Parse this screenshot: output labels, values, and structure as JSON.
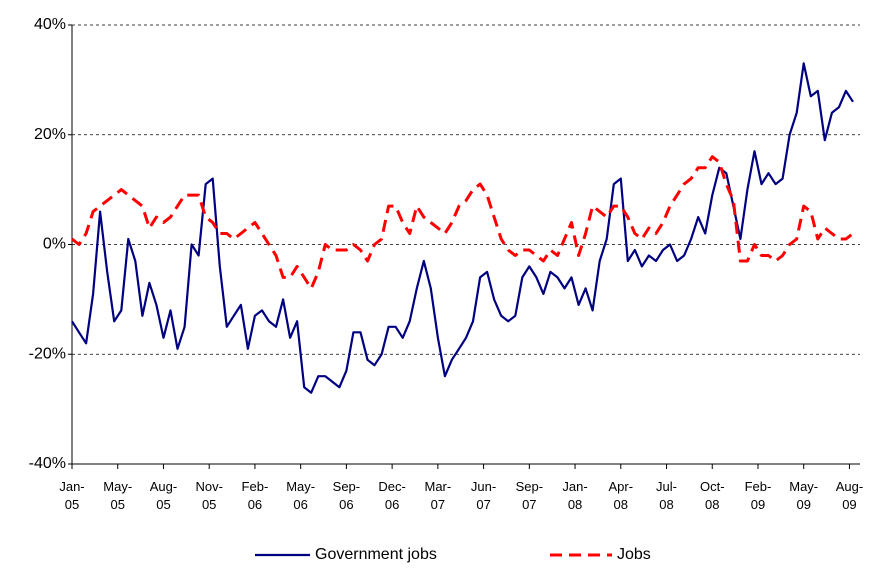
{
  "chart_data": {
    "type": "line",
    "x": [
      0,
      2,
      4,
      6,
      8,
      10,
      12,
      14,
      16,
      18,
      20,
      22,
      24,
      26,
      28,
      30,
      32,
      34,
      36,
      38,
      40,
      42,
      44,
      46,
      48,
      50,
      52,
      54,
      56,
      58,
      60,
      62,
      64,
      66,
      68,
      70,
      72,
      74,
      76,
      78,
      80,
      82,
      84,
      86,
      88,
      90,
      92,
      94,
      96,
      98,
      100,
      102,
      104,
      106,
      108,
      110,
      112,
      114,
      116,
      118,
      120,
      122,
      124,
      126,
      128,
      130,
      132,
      134,
      136,
      138,
      140,
      142,
      144,
      146,
      148,
      150,
      152,
      154,
      156,
      158,
      160,
      162,
      164,
      166,
      168,
      170,
      172,
      174,
      176,
      178,
      180,
      182,
      184,
      186,
      188,
      190,
      192,
      194,
      196,
      198,
      200,
      202,
      204,
      206,
      208,
      210,
      212,
      214,
      216,
      218,
      220,
      222
    ],
    "series": [
      {
        "name": "Government jobs",
        "color": "#000080",
        "dash": false,
        "values": [
          -14,
          -16,
          -18,
          -9,
          6,
          -5,
          -14,
          -12,
          1,
          -3,
          -13,
          -7,
          -11,
          -17,
          -12,
          -19,
          -15,
          0,
          -2,
          11,
          12,
          -4,
          -15,
          -13,
          -11,
          -19,
          -13,
          -12,
          -14,
          -15,
          -10,
          -17,
          -14,
          -26,
          -27,
          -24,
          -24,
          -25,
          -26,
          -23,
          -16,
          -16,
          -21,
          -22,
          -20,
          -15,
          -15,
          -17,
          -14,
          -8,
          -3,
          -8,
          -17,
          -24,
          -21,
          -19,
          -17,
          -14,
          -6,
          -5,
          -10,
          -13,
          -14,
          -13,
          -6,
          -4,
          -6,
          -9,
          -5,
          -6,
          -8,
          -6,
          -11,
          -8,
          -12,
          -3,
          1,
          11,
          12,
          -3,
          -1,
          -4,
          -2,
          -3,
          -1,
          0,
          -3,
          -2,
          1,
          5,
          2,
          9,
          14,
          13,
          7,
          1,
          10,
          17,
          11,
          13,
          11,
          12,
          20,
          24,
          33,
          27,
          28,
          19,
          24,
          25,
          28,
          26
        ]
      },
      {
        "name": "Jobs",
        "color": "#ff0000",
        "dash": true,
        "values": [
          1,
          0,
          2,
          6,
          7,
          8,
          9,
          10,
          9,
          8,
          7,
          3,
          5,
          4,
          5,
          7,
          9,
          9,
          9,
          5,
          4,
          2,
          2,
          1,
          2,
          3,
          4,
          2,
          0,
          -2,
          -6,
          -6,
          -4,
          -6,
          -8,
          -5,
          0,
          -1,
          -1,
          -1,
          0,
          -1,
          -3,
          0,
          1,
          7,
          7,
          4,
          2,
          7,
          5,
          4,
          3,
          2,
          4,
          7,
          8,
          10,
          11,
          9,
          5,
          1,
          -1,
          -2,
          -1,
          -1,
          -2,
          -3,
          -1,
          -2,
          1,
          4,
          -2,
          2,
          7,
          6,
          5,
          7,
          7,
          5,
          2,
          1,
          3,
          2,
          4,
          7,
          9,
          11,
          12,
          14,
          14,
          16,
          15,
          11,
          8,
          -3,
          -3,
          0,
          -2,
          -2,
          -3,
          -2,
          0,
          1,
          7,
          6,
          1,
          3,
          2,
          1,
          1,
          2
        ]
      }
    ],
    "xlim": [
      0,
      224
    ],
    "xticks": [
      {
        "value": 0,
        "label": "Jan- 05"
      },
      {
        "value": 13,
        "label": "May- 05"
      },
      {
        "value": 26,
        "label": "Aug- 05"
      },
      {
        "value": 39,
        "label": "Nov- 05"
      },
      {
        "value": 52,
        "label": "Feb- 06"
      },
      {
        "value": 65,
        "label": "May- 06"
      },
      {
        "value": 78,
        "label": "Sep- 06"
      },
      {
        "value": 91,
        "label": "Dec- 06"
      },
      {
        "value": 104,
        "label": "Mar- 07"
      },
      {
        "value": 117,
        "label": "Jun- 07"
      },
      {
        "value": 130,
        "label": "Sep- 07"
      },
      {
        "value": 143,
        "label": "Jan- 08"
      },
      {
        "value": 156,
        "label": "Apr- 08"
      },
      {
        "value": 169,
        "label": "Jul- 08"
      },
      {
        "value": 182,
        "label": "Oct- 08"
      },
      {
        "value": 195,
        "label": "Feb- 09"
      },
      {
        "value": 208,
        "label": "May- 09"
      },
      {
        "value": 221,
        "label": "Aug- 09"
      }
    ],
    "ylim": [
      -40,
      40
    ],
    "yticks": [
      {
        "value": -40,
        "label": "-40%"
      },
      {
        "value": -20,
        "label": "-20%"
      },
      {
        "value": 0,
        "label": "0%"
      },
      {
        "value": 20,
        "label": "20%"
      },
      {
        "value": 40,
        "label": "40%"
      }
    ],
    "grid": true,
    "legend": "bottom"
  }
}
